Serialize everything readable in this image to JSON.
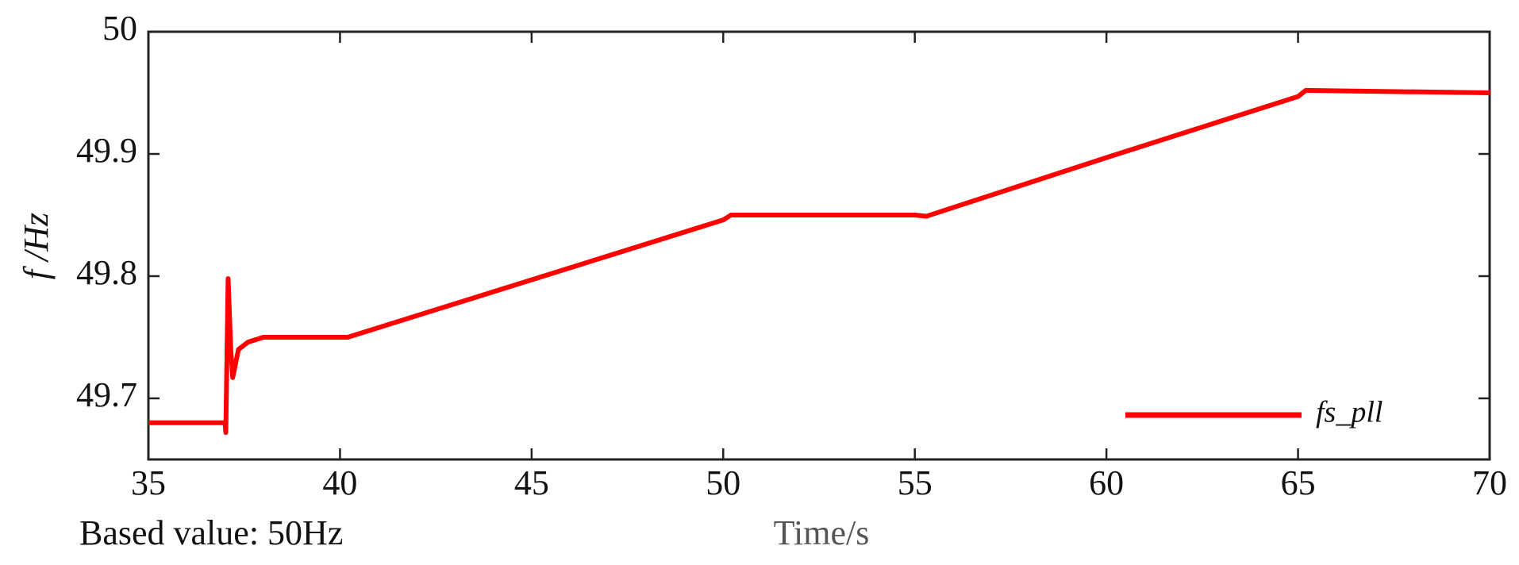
{
  "chart_data": {
    "type": "line",
    "xlabel": "Time/s",
    "ylabel": "f /Hz",
    "annotation": "Based value: 50Hz",
    "x": [
      35,
      37,
      37.02,
      37.08,
      37.15,
      37.2,
      37.35,
      37.6,
      38,
      40,
      40.2,
      45,
      50,
      50.2,
      55,
      55.3,
      60,
      65,
      65.2,
      70
    ],
    "series": [
      {
        "name": "fs_pll",
        "color": "#ff0000",
        "values": [
          49.68,
          49.68,
          49.672,
          49.798,
          49.74,
          49.717,
          49.74,
          49.746,
          49.75,
          49.75,
          49.75,
          49.797,
          49.846,
          49.85,
          49.85,
          49.849,
          49.897,
          49.947,
          49.952,
          49.95
        ]
      }
    ],
    "xlim": [
      35,
      70
    ],
    "xticks": [
      35,
      40,
      45,
      50,
      55,
      60,
      65,
      70
    ],
    "ylim": [
      49.65,
      50
    ],
    "yticks": [
      49.7,
      49.8,
      49.9,
      50
    ],
    "grid": false,
    "legend": "lower right"
  }
}
